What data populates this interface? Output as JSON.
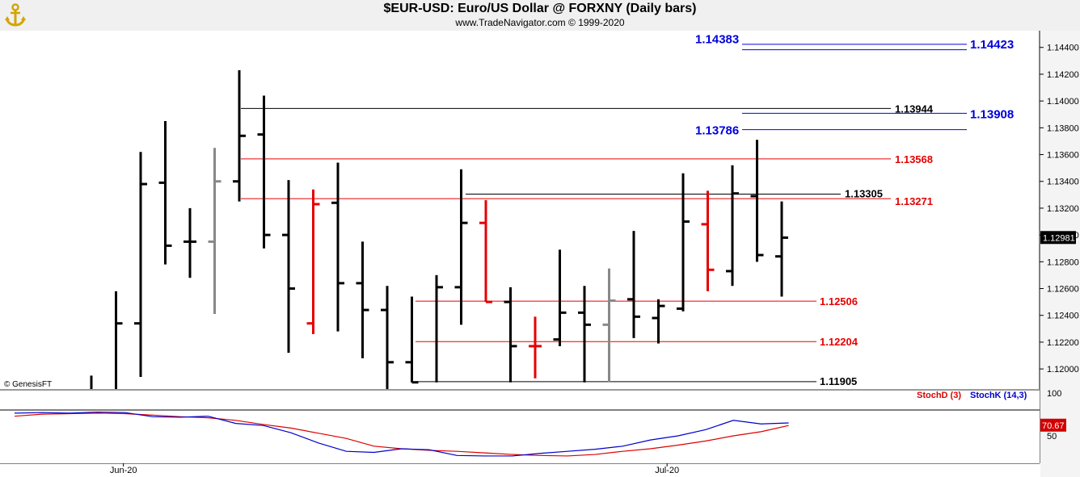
{
  "header": {
    "title": "$EUR-USD:  Euro/US Dollar @ FORXNY  (Daily bars)",
    "subtitle": "www.TradeNavigator.com © 1999-2020"
  },
  "watermark": "© GenesisFT",
  "colors": {
    "black": "#000000",
    "red": "#e60000",
    "gray": "#888888",
    "blue": "#0000dd",
    "stochD": "#dd0000",
    "stochK": "#0000cc"
  },
  "chart_data": [
    {
      "type": "ohlc",
      "ylim": [
        1.1185,
        1.14525
      ],
      "yticks": [
        "1.14400",
        "1.14200",
        "1.14000",
        "1.13800",
        "1.13600",
        "1.13400",
        "1.13200",
        "1.13000",
        "1.12800",
        "1.12600",
        "1.12400",
        "1.12200",
        "1.12000"
      ],
      "xticks": [
        {
          "label": "Jun-20",
          "index": 1.3
        },
        {
          "label": "Jul-20",
          "index": 23.35
        }
      ],
      "last_price": "1.12981",
      "bars": [
        {
          "h": 1.1195,
          "l": 1.1185,
          "o": null,
          "c": null,
          "color": "black"
        },
        {
          "h": 1.1258,
          "l": 1.1185,
          "o": null,
          "c": 1.1234,
          "color": "black"
        },
        {
          "h": 1.1362,
          "l": 1.1194,
          "o": 1.1234,
          "c": 1.1338,
          "color": "black"
        },
        {
          "h": 1.1385,
          "l": 1.1278,
          "o": 1.1339,
          "c": 1.1292,
          "color": "black"
        },
        {
          "h": 1.132,
          "l": 1.1268,
          "o": 1.1295,
          "c": 1.1295,
          "color": "black"
        },
        {
          "h": 1.1365,
          "l": 1.1241,
          "o": 1.1295,
          "c": 1.134,
          "color": "gray"
        },
        {
          "h": 1.1423,
          "l": 1.1325,
          "o": 1.134,
          "c": 1.1374,
          "color": "black"
        },
        {
          "h": 1.1404,
          "l": 1.129,
          "o": 1.1375,
          "c": 1.13,
          "color": "black"
        },
        {
          "h": 1.1341,
          "l": 1.1212,
          "o": 1.13,
          "c": 1.126,
          "color": "black"
        },
        {
          "h": 1.1334,
          "l": 1.1226,
          "o": 1.1234,
          "c": 1.1323,
          "color": "red"
        },
        {
          "h": 1.1354,
          "l": 1.1228,
          "o": 1.1324,
          "c": 1.1264,
          "color": "black"
        },
        {
          "h": 1.1295,
          "l": 1.1208,
          "o": 1.1264,
          "c": 1.1244,
          "color": "black"
        },
        {
          "h": 1.1262,
          "l": 1.1185,
          "o": 1.1244,
          "c": 1.1205,
          "color": "black"
        },
        {
          "h": 1.1254,
          "l": 1.119,
          "o": 1.1205,
          "c": 1.119,
          "color": "black"
        },
        {
          "h": 1.127,
          "l": 1.119,
          "o": null,
          "c": 1.1261,
          "color": "black"
        },
        {
          "h": 1.1349,
          "l": 1.1233,
          "o": 1.1261,
          "c": 1.1309,
          "color": "black"
        },
        {
          "h": 1.1326,
          "l": 1.125,
          "o": 1.1309,
          "c": 1.125,
          "color": "red"
        },
        {
          "h": 1.1261,
          "l": 1.119,
          "o": 1.125,
          "c": 1.1217,
          "color": "black"
        },
        {
          "h": 1.1239,
          "l": 1.1193,
          "o": 1.1217,
          "c": 1.1217,
          "color": "red"
        },
        {
          "h": 1.1289,
          "l": 1.1217,
          "o": 1.1222,
          "c": 1.1242,
          "color": "black"
        },
        {
          "h": 1.1262,
          "l": 1.119,
          "o": 1.1242,
          "c": 1.1233,
          "color": "black"
        },
        {
          "h": 1.1275,
          "l": 1.119,
          "o": 1.1233,
          "c": 1.1251,
          "color": "gray"
        },
        {
          "h": 1.1303,
          "l": 1.1223,
          "o": 1.1252,
          "c": 1.1239,
          "color": "black"
        },
        {
          "h": 1.1252,
          "l": 1.1219,
          "o": 1.1238,
          "c": 1.1247,
          "color": "black"
        },
        {
          "h": 1.1346,
          "l": 1.1243,
          "o": 1.1245,
          "c": 1.131,
          "color": "black"
        },
        {
          "h": 1.1333,
          "l": 1.1258,
          "o": 1.1308,
          "c": 1.1274,
          "color": "red"
        },
        {
          "h": 1.1352,
          "l": 1.1262,
          "o": 1.1273,
          "c": 1.1331,
          "color": "black"
        },
        {
          "h": 1.1371,
          "l": 1.128,
          "o": 1.1329,
          "c": 1.1285,
          "color": "black"
        },
        {
          "h": 1.1325,
          "l": 1.1254,
          "o": 1.1284,
          "c": 1.1298,
          "color": "black"
        }
      ],
      "levels": [
        {
          "value": 1.14383,
          "color": "blue",
          "label": "1.14383",
          "side": "left"
        },
        {
          "value": 1.14423,
          "color": "blue",
          "label": "1.14423",
          "side": "right"
        },
        {
          "value": 1.13944,
          "color": "black",
          "label": "1.13944",
          "side": "right"
        },
        {
          "value": 1.13908,
          "color": "blue",
          "label": "1.13908",
          "side": "right"
        },
        {
          "value": 1.13786,
          "color": "blue",
          "label": "1.13786",
          "side": "left"
        },
        {
          "value": 1.13568,
          "color": "red",
          "label": "1.13568",
          "side": "right"
        },
        {
          "value": 1.13305,
          "color": "black",
          "label": "1.13305",
          "side": "right"
        },
        {
          "value": 1.13271,
          "color": "red",
          "label": "1.13271",
          "side": "right"
        },
        {
          "value": 1.12506,
          "color": "red",
          "label": "1.12506",
          "side": "right"
        },
        {
          "value": 1.12204,
          "color": "red",
          "label": "1.12204",
          "side": "right"
        },
        {
          "value": 1.11905,
          "color": "black",
          "label": "1.11905",
          "side": "right"
        }
      ]
    },
    {
      "type": "line",
      "title": "",
      "ylim": [
        0,
        100
      ],
      "yticks": [
        "100",
        "50"
      ],
      "last_value": "70.67",
      "series": [
        {
          "name": "StochD (3)",
          "color": "stochD",
          "values": [
            88,
            92,
            93,
            94,
            93,
            90,
            87,
            85,
            80,
            72,
            65,
            55,
            45,
            30,
            25,
            22,
            20,
            17,
            14,
            12,
            11,
            14,
            20,
            25,
            32,
            40,
            50,
            58,
            70
          ]
        },
        {
          "name": "StochK (14,3)",
          "color": "stochK",
          "values": [
            94,
            95,
            94,
            96,
            95,
            87,
            86,
            88,
            74,
            70,
            56,
            36,
            20,
            18,
            25,
            23,
            12,
            11,
            11,
            16,
            20,
            24,
            30,
            42,
            50,
            62,
            80,
            73,
            75
          ]
        }
      ]
    }
  ]
}
